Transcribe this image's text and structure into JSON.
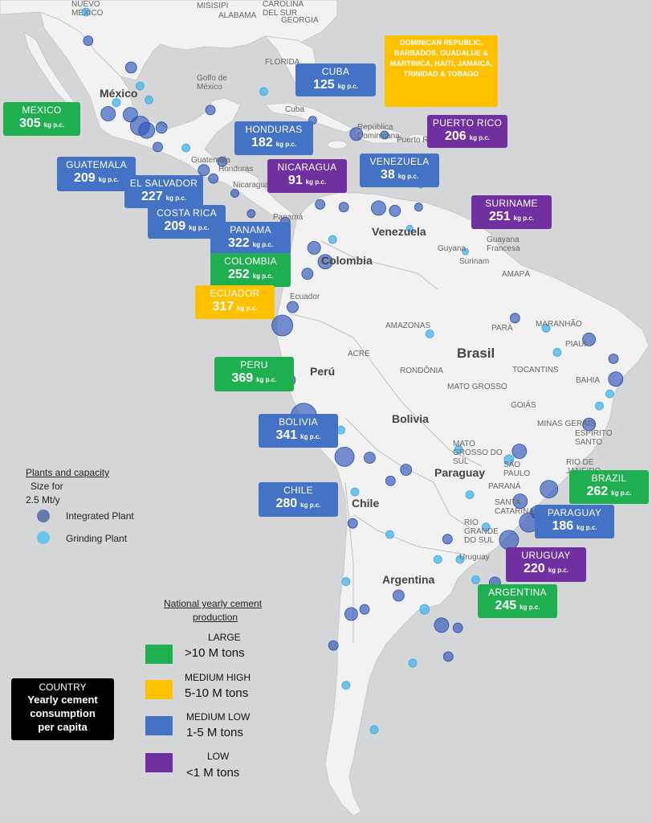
{
  "colors": {
    "large": "#1fae50",
    "medium_high": "#ffc000",
    "medium_low": "#4472c4",
    "low": "#7030a0",
    "integrated_plant": "#2e55b8",
    "grinding_plant": "#4fb6ea"
  },
  "countries": [
    {
      "id": "mexico",
      "name": "MEXICO",
      "value": "305",
      "unit": "kg p.c.",
      "category": "large"
    },
    {
      "id": "cuba",
      "name": "CUBA",
      "value": "125",
      "unit": "kg p.c.",
      "category": "medium_low"
    },
    {
      "id": "caribbean",
      "name": "DOMINICAN REPUBLIC, BARBADOS, GUADALUE & MARTINICA, HAITI, JAMAICA, TRINIDAD & TOBAGO",
      "value": "",
      "unit": "",
      "category": "medium_high"
    },
    {
      "id": "puerto-rico",
      "name": "PUERTO RICO",
      "value": "206",
      "unit": "kg p.c.",
      "category": "low"
    },
    {
      "id": "honduras",
      "name": "HONDURAS",
      "value": "182",
      "unit": "kg p.c.",
      "category": "medium_low"
    },
    {
      "id": "guatemala",
      "name": "GUATEMALA",
      "value": "209",
      "unit": "kg p.c.",
      "category": "medium_low"
    },
    {
      "id": "el-salvador",
      "name": "EL SALVADOR",
      "value": "227",
      "unit": "kg p.c.",
      "category": "medium_low"
    },
    {
      "id": "nicaragua",
      "name": "NICARAGUA",
      "value": "91",
      "unit": "kg p.c.",
      "category": "low"
    },
    {
      "id": "venezuela",
      "name": "VENEZUELA",
      "value": "38",
      "unit": "kg p.c.",
      "category": "medium_low"
    },
    {
      "id": "costa-rica",
      "name": "COSTA RICA",
      "value": "209",
      "unit": "kg p.c.",
      "category": "medium_low"
    },
    {
      "id": "panama",
      "name": "PANAMA",
      "value": "322",
      "unit": "kg p.c.",
      "category": "medium_low"
    },
    {
      "id": "suriname",
      "name": "SURINAME",
      "value": "251",
      "unit": "kg p.c.",
      "category": "low"
    },
    {
      "id": "colombia",
      "name": "COLOMBIA",
      "value": "252",
      "unit": "kg p.c.",
      "category": "large"
    },
    {
      "id": "ecuador",
      "name": "ECUADOR",
      "value": "317",
      "unit": "kg p.c.",
      "category": "medium_high"
    },
    {
      "id": "peru",
      "name": "PERU",
      "value": "369",
      "unit": "kg p.c.",
      "category": "large"
    },
    {
      "id": "bolivia",
      "name": "BOLIVIA",
      "value": "341",
      "unit": "kg p.c.",
      "category": "medium_low"
    },
    {
      "id": "chile",
      "name": "CHILE",
      "value": "280",
      "unit": "kg p.c.",
      "category": "medium_low"
    },
    {
      "id": "brazil",
      "name": "BRAZIL",
      "value": "262",
      "unit": "kg p.c.",
      "category": "large"
    },
    {
      "id": "paraguay",
      "name": "PARAGUAY",
      "value": "186",
      "unit": "kg p.c.",
      "category": "medium_low"
    },
    {
      "id": "uruguay",
      "name": "URUGUAY",
      "value": "220",
      "unit": "kg p.c.",
      "category": "low"
    },
    {
      "id": "argentina",
      "name": "ARGENTINA",
      "value": "245",
      "unit": "kg p.c.",
      "category": "large"
    }
  ],
  "legend_plants": {
    "title": "Plants and capacity",
    "size_line1": "Size for",
    "size_line2": "2.5 Mt/y",
    "integrated": "Integrated Plant",
    "grinding": "Grinding Plant"
  },
  "legend_production": {
    "title_line1": "National yearly cement",
    "title_line2": "production",
    "categories": [
      {
        "name": "LARGE",
        "range": ">10 M tons"
      },
      {
        "name": "MEDIUM HIGH",
        "range": "5-10 M tons"
      },
      {
        "name": "MEDIUM LOW",
        "range": "1-5 M tons"
      },
      {
        "name": "LOW",
        "range": "<1 M tons"
      }
    ]
  },
  "key_box": {
    "line1": "COUNTRY",
    "line2": "Yearly cement",
    "line3": "consumption",
    "line4": "per capita"
  },
  "place_labels": {
    "mexico": "México",
    "venezuela": "Venezuela",
    "colombia": "Colombia",
    "brasil": "Brasil",
    "peru": "Perú",
    "bolivia": "Bolivia",
    "paraguay": "Paraguay",
    "chile": "Chile",
    "argentina": "Argentina",
    "guyana": "Guyana",
    "suriname": "Surinam",
    "guyane": "Guayana Francesa",
    "ecuador": "Ecuador",
    "cuba": "Cuba",
    "republica": "República Dominicana",
    "puerto_rico": "Puerto Rico",
    "golfo": "Golfo de México",
    "guatemala": "Guatemala",
    "honduras": "Honduras",
    "nicaragua": "Nicaragua",
    "panama": "Panamá",
    "amazonas": "AMAZONAS",
    "para": "PARÁ",
    "maranhao": "MARANHÃO",
    "piaui": "PIAUÍ",
    "bahia": "BAHIA",
    "tocantins": "TOCANTINS",
    "mato_grosso": "MATO GROSSO",
    "goias": "GOIÁS",
    "minas": "MINAS GERAIS",
    "rondonia": "RONDÔNIA",
    "acre": "ACRE",
    "amapa": "AMAPÁ",
    "rio_grande": "RIO GRANDE DO SUL",
    "santa_catarina": "SANTA CATARINA",
    "parana": "PARANÁ",
    "sao_paulo": "SÃO PAULO",
    "rio": "RIO DE JANEIRO",
    "espirito": "ESPÍRITO SANTO",
    "ms": "MATO GROSSO DO SUL",
    "florida": "FLORIDA",
    "alabama": "ALABAMA",
    "mississippi": "MISISIPI",
    "carolina": "CAROLINA DEL SUR",
    "nuevo_mexico": "NUEVO MÉXICO",
    "georgia": "GEORGIA",
    "uruguay": "Uruguay"
  },
  "plants": [
    {
      "lat": 28.6,
      "lon": -106.1,
      "type": "integrated",
      "size": 6
    },
    {
      "lat": 25.7,
      "lon": -100.3,
      "type": "integrated",
      "size": 7
    },
    {
      "lat": 20.7,
      "lon": -103.4,
      "type": "integrated",
      "size": 9
    },
    {
      "lat": 19.4,
      "lon": -99.1,
      "type": "integrated",
      "size": 12
    },
    {
      "lat": 18.9,
      "lon": -98.2,
      "type": "integrated",
      "size": 10
    },
    {
      "lat": 20.6,
      "lon": -100.4,
      "type": "integrated",
      "size": 9
    },
    {
      "lat": 19.2,
      "lon": -96.2,
      "type": "integrated",
      "size": 7
    },
    {
      "lat": 21.1,
      "lon": -89.6,
      "type": "integrated",
      "size": 6
    },
    {
      "lat": 17.1,
      "lon": -96.7,
      "type": "integrated",
      "size": 6
    },
    {
      "lat": 22.2,
      "lon": -97.9,
      "type": "grinding",
      "size": 5
    },
    {
      "lat": 23.7,
      "lon": -99.1,
      "type": "grinding",
      "size": 5
    },
    {
      "lat": 14.6,
      "lon": -90.5,
      "type": "integrated",
      "size": 7
    },
    {
      "lat": 15.5,
      "lon": -88.0,
      "type": "integrated",
      "size": 6
    },
    {
      "lat": 13.7,
      "lon": -89.2,
      "type": "integrated",
      "size": 6
    },
    {
      "lat": 12.1,
      "lon": -86.3,
      "type": "integrated",
      "size": 5
    },
    {
      "lat": 9.9,
      "lon": -84.1,
      "type": "integrated",
      "size": 5
    },
    {
      "lat": 9.0,
      "lon": -79.5,
      "type": "integrated",
      "size": 6
    },
    {
      "lat": 23.1,
      "lon": -82.4,
      "type": "grinding",
      "size": 5
    },
    {
      "lat": 20.0,
      "lon": -75.8,
      "type": "integrated",
      "size": 5
    },
    {
      "lat": 18.5,
      "lon": -69.9,
      "type": "integrated",
      "size": 8
    },
    {
      "lat": 18.0,
      "lon": -76.8,
      "type": "integrated",
      "size": 5
    },
    {
      "lat": 18.4,
      "lon": -66.1,
      "type": "integrated",
      "size": 5
    },
    {
      "lat": 10.5,
      "lon": -66.9,
      "type": "integrated",
      "size": 9
    },
    {
      "lat": 10.2,
      "lon": -64.7,
      "type": "integrated",
      "size": 7
    },
    {
      "lat": 10.6,
      "lon": -71.6,
      "type": "integrated",
      "size": 6
    },
    {
      "lat": 8.3,
      "lon": -62.7,
      "type": "grinding",
      "size": 4
    },
    {
      "lat": 6.2,
      "lon": -75.6,
      "type": "integrated",
      "size": 8
    },
    {
      "lat": 4.7,
      "lon": -74.1,
      "type": "integrated",
      "size": 9
    },
    {
      "lat": 3.4,
      "lon": -76.5,
      "type": "integrated",
      "size": 7
    },
    {
      "lat": 10.9,
      "lon": -74.8,
      "type": "integrated",
      "size": 6
    },
    {
      "lat": -2.2,
      "lon": -79.9,
      "type": "integrated",
      "size": 13
    },
    {
      "lat": -0.2,
      "lon": -78.5,
      "type": "integrated",
      "size": 7
    },
    {
      "lat": -12.0,
      "lon": -77.0,
      "type": "integrated",
      "size": 16
    },
    {
      "lat": -8.1,
      "lon": -79.0,
      "type": "integrated",
      "size": 8
    },
    {
      "lat": -16.4,
      "lon": -71.5,
      "type": "integrated",
      "size": 12
    },
    {
      "lat": -17.8,
      "lon": -63.2,
      "type": "integrated",
      "size": 7
    },
    {
      "lat": -16.5,
      "lon": -68.1,
      "type": "integrated",
      "size": 7
    },
    {
      "lat": -19.0,
      "lon": -65.3,
      "type": "integrated",
      "size": 6
    },
    {
      "lat": -23.6,
      "lon": -70.4,
      "type": "integrated",
      "size": 6
    },
    {
      "lat": -33.4,
      "lon": -70.6,
      "type": "integrated",
      "size": 8
    },
    {
      "lat": -36.8,
      "lon": -73.0,
      "type": "integrated",
      "size": 6
    },
    {
      "lat": -34.6,
      "lon": -58.4,
      "type": "integrated",
      "size": 9
    },
    {
      "lat": -31.4,
      "lon": -64.2,
      "type": "integrated",
      "size": 7
    },
    {
      "lat": -32.9,
      "lon": -68.8,
      "type": "integrated",
      "size": 6
    },
    {
      "lat": -38.0,
      "lon": -57.5,
      "type": "integrated",
      "size": 6
    },
    {
      "lat": -25.3,
      "lon": -57.6,
      "type": "integrated",
      "size": 6
    },
    {
      "lat": -34.9,
      "lon": -56.2,
      "type": "integrated",
      "size": 6
    },
    {
      "lat": -23.5,
      "lon": -46.6,
      "type": "integrated",
      "size": 12
    },
    {
      "lat": -22.9,
      "lon": -43.2,
      "type": "integrated",
      "size": 10
    },
    {
      "lat": -19.9,
      "lon": -43.9,
      "type": "integrated",
      "size": 11
    },
    {
      "lat": -25.4,
      "lon": -49.3,
      "type": "integrated",
      "size": 12
    },
    {
      "lat": -27.6,
      "lon": -48.5,
      "type": "integrated",
      "size": 7
    },
    {
      "lat": -30.0,
      "lon": -51.2,
      "type": "integrated",
      "size": 7
    },
    {
      "lat": -15.8,
      "lon": -47.9,
      "type": "integrated",
      "size": 9
    },
    {
      "lat": -12.9,
      "lon": -38.5,
      "type": "integrated",
      "size": 8
    },
    {
      "lat": -8.0,
      "lon": -34.9,
      "type": "integrated",
      "size": 9
    },
    {
      "lat": -3.7,
      "lon": -38.5,
      "type": "integrated",
      "size": 8
    },
    {
      "lat": -5.8,
      "lon": -35.2,
      "type": "integrated",
      "size": 6
    },
    {
      "lat": -1.4,
      "lon": -48.5,
      "type": "integrated",
      "size": 6
    },
    {
      "lat": -3.1,
      "lon": -60.0,
      "type": "grinding",
      "size": 5
    },
    {
      "lat": -20.3,
      "lon": -40.3,
      "type": "integrated",
      "size": 7
    },
    {
      "lat": -21.2,
      "lon": -47.8,
      "type": "integrated",
      "size": 9
    },
    {
      "lat": -22.4,
      "lon": -45.5,
      "type": "integrated",
      "size": 8
    },
    {
      "lat": -9.6,
      "lon": -35.7,
      "type": "grinding",
      "size": 5
    },
    {
      "lat": -10.9,
      "lon": -37.1,
      "type": "grinding",
      "size": 5
    },
    {
      "lat": -16.7,
      "lon": -49.3,
      "type": "grinding",
      "size": 6
    },
    {
      "lat": -20.5,
      "lon": -54.6,
      "type": "grinding",
      "size": 5
    },
    {
      "lat": -15.6,
      "lon": -56.1,
      "type": "grinding",
      "size": 5
    },
    {
      "lat": -5.1,
      "lon": -42.8,
      "type": "grinding",
      "size": 5
    },
    {
      "lat": -2.5,
      "lon": -44.3,
      "type": "grinding",
      "size": 5
    },
    {
      "lat": -27.5,
      "lon": -55.9,
      "type": "grinding",
      "size": 5
    },
    {
      "lat": -26.9,
      "lon": -49.1,
      "type": "grinding",
      "size": 5
    },
    {
      "lat": -24.0,
      "lon": -52.4,
      "type": "grinding",
      "size": 5
    },
    {
      "lat": -29.7,
      "lon": -53.8,
      "type": "grinding",
      "size": 5
    },
    {
      "lat": -31.8,
      "lon": -52.3,
      "type": "grinding",
      "size": 5
    },
    {
      "lat": -24.8,
      "lon": -65.4,
      "type": "grinding",
      "size": 5
    },
    {
      "lat": -27.5,
      "lon": -58.9,
      "type": "grinding",
      "size": 5
    },
    {
      "lat": -32.9,
      "lon": -60.7,
      "type": "grinding",
      "size": 6
    },
    {
      "lat": -38.7,
      "lon": -62.3,
      "type": "grinding",
      "size": 5
    },
    {
      "lat": -41.1,
      "lon": -71.3,
      "type": "grinding",
      "size": 5
    },
    {
      "lat": -45.9,
      "lon": -67.5,
      "type": "grinding",
      "size": 5
    },
    {
      "lat": -20.2,
      "lon": -70.1,
      "type": "grinding",
      "size": 5
    },
    {
      "lat": -29.9,
      "lon": -71.3,
      "type": "grinding",
      "size": 5
    },
    {
      "lat": -13.5,
      "lon": -72.0,
      "type": "grinding",
      "size": 5
    },
    {
      "lat": -6.8,
      "lon": -79.8,
      "type": "grinding",
      "size": 5
    },
    {
      "lat": 7.1,
      "lon": -73.1,
      "type": "grinding",
      "size": 5
    },
    {
      "lat": 5.8,
      "lon": -55.2,
      "type": "grinding",
      "size": 4
    },
    {
      "lat": 21.9,
      "lon": -102.3,
      "type": "grinding",
      "size": 5
    },
    {
      "lat": 31.7,
      "lon": -106.4,
      "type": "grinding",
      "size": 5
    },
    {
      "lat": 17.0,
      "lon": -92.9,
      "type": "grinding",
      "size": 5
    },
    {
      "lat": 13.0,
      "lon": -61.2,
      "type": "grinding",
      "size": 4
    },
    {
      "lat": 10.6,
      "lon": -61.5,
      "type": "integrated",
      "size": 5
    }
  ]
}
